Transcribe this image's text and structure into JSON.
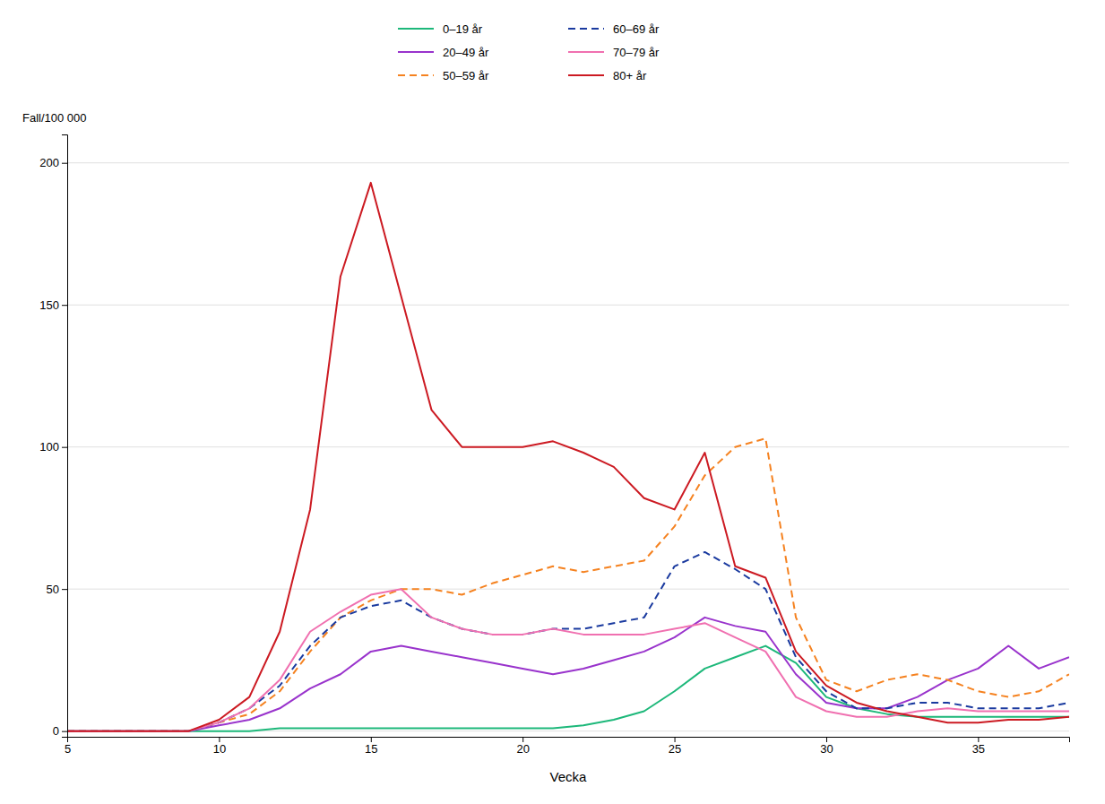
{
  "chart_data": {
    "type": "line",
    "xlabel": "Vecka",
    "ylabel": "Fall/100 000",
    "xlim": [
      5,
      38
    ],
    "ylim": [
      -2,
      210
    ],
    "xticks": [
      5,
      10,
      15,
      20,
      25,
      30,
      35
    ],
    "yticks": [
      0,
      50,
      100,
      150,
      200
    ],
    "grid": "y",
    "legend": "top",
    "x": [
      5,
      6,
      7,
      8,
      9,
      10,
      11,
      12,
      13,
      14,
      15,
      16,
      17,
      18,
      19,
      20,
      21,
      22,
      23,
      24,
      25,
      26,
      27,
      28,
      29,
      30,
      31,
      32,
      33,
      34,
      35,
      36,
      37,
      38
    ],
    "series": [
      {
        "name": "0–19 år",
        "color": "#1db87a",
        "line_style": "solid",
        "values": [
          0,
          0,
          0,
          0,
          0,
          0,
          0,
          1,
          1,
          1,
          1,
          1,
          1,
          1,
          1,
          1,
          1,
          2,
          4,
          7,
          14,
          22,
          26,
          30,
          24,
          12,
          8,
          6,
          5,
          5,
          5,
          5,
          5,
          5
        ]
      },
      {
        "name": "20–49 år",
        "color": "#9933cc",
        "line_style": "solid",
        "values": [
          0,
          0,
          0,
          0,
          0,
          2,
          4,
          8,
          15,
          20,
          28,
          30,
          28,
          26,
          24,
          22,
          20,
          22,
          25,
          28,
          33,
          40,
          37,
          35,
          20,
          10,
          8,
          8,
          12,
          18,
          22,
          30,
          22,
          26
        ]
      },
      {
        "name": "50–59 år",
        "color": "#f58220",
        "line_style": "dashed",
        "values": [
          0,
          0,
          0,
          0,
          0,
          3,
          6,
          14,
          28,
          40,
          46,
          50,
          50,
          48,
          52,
          55,
          58,
          56,
          58,
          60,
          72,
          90,
          100,
          103,
          40,
          18,
          14,
          18,
          20,
          18,
          14,
          12,
          14,
          20
        ]
      },
      {
        "name": "60–69 år",
        "color": "#1a3a9f",
        "line_style": "dashed",
        "values": [
          0,
          0,
          0,
          0,
          0,
          3,
          8,
          16,
          30,
          40,
          44,
          46,
          40,
          36,
          34,
          34,
          36,
          36,
          38,
          40,
          58,
          63,
          57,
          50,
          26,
          14,
          8,
          8,
          10,
          10,
          8,
          8,
          8,
          10
        ]
      },
      {
        "name": "70–79 år",
        "color": "#f070b0",
        "line_style": "solid",
        "values": [
          0,
          0,
          0,
          0,
          0,
          3,
          8,
          18,
          35,
          42,
          48,
          50,
          40,
          36,
          34,
          34,
          36,
          34,
          34,
          34,
          36,
          38,
          33,
          28,
          12,
          7,
          5,
          5,
          7,
          8,
          7,
          7,
          7,
          7
        ]
      },
      {
        "name": "80+ år",
        "color": "#cc1a22",
        "line_style": "solid",
        "values": [
          0,
          0,
          0,
          0,
          0,
          4,
          12,
          35,
          78,
          160,
          193,
          153,
          113,
          100,
          100,
          100,
          102,
          98,
          93,
          82,
          78,
          98,
          58,
          54,
          28,
          16,
          10,
          7,
          5,
          3,
          3,
          4,
          4,
          5
        ]
      }
    ]
  }
}
